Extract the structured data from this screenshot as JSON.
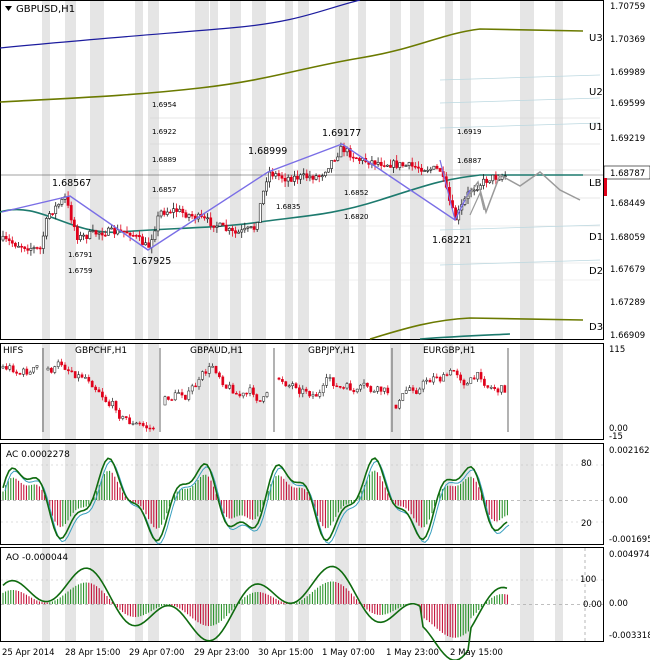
{
  "main_panel": {
    "title": "GBPUSD,H1",
    "price_axis": [
      "1.70759",
      "1.70369",
      "1.69989",
      "1.69599",
      "1.69219",
      "1.68787",
      "1.68449",
      "1.68059",
      "1.67679",
      "1.67289",
      "1.66909"
    ],
    "current_price": "1.68787",
    "levels": [
      {
        "label": "U3",
        "price": 1.7035
      },
      {
        "label": "U2",
        "price": 1.6962
      },
      {
        "label": "U1",
        "price": 1.6925
      },
      {
        "label": "LB",
        "price": 1.6879
      },
      {
        "label": "D1",
        "price": 1.6806
      },
      {
        "label": "D2",
        "price": 1.6768
      },
      {
        "label": "D3",
        "price": 1.67
      }
    ],
    "zigzag_labels": [
      {
        "text": "1.68567",
        "price": 1.68567
      },
      {
        "text": "1.67925",
        "price": 1.67925
      },
      {
        "text": "1.68999",
        "price": 1.68999
      },
      {
        "text": "1.69177",
        "price": 1.69177
      },
      {
        "text": "1.68221",
        "price": 1.68221
      }
    ],
    "fib_labels": [
      "1.6954",
      "1.6922",
      "1.6889",
      "1.6857",
      "1.6835",
      "1.6791",
      "1.6759",
      "1.6852",
      "1.6820",
      "1.6919",
      "1.6887"
    ]
  },
  "sub_panel_1": {
    "title": "HIFS",
    "instruments": [
      "GBPCHF,H1",
      "GBPAUD,H1",
      "GBPJPY,H1",
      "EURGBP,H1"
    ],
    "axis": [
      "115",
      "0.00",
      "-15"
    ]
  },
  "sub_panel_2": {
    "title": "AC 0.0002278",
    "axis_right": [
      "0.002162",
      "0.00",
      "-0.001695"
    ],
    "axis_left": [
      "80",
      "20"
    ]
  },
  "sub_panel_3": {
    "title": "AO -0.000044",
    "axis_right": [
      "0.004974",
      "0.00",
      "-0.003318"
    ],
    "axis_left": [
      "100",
      "0.00"
    ]
  },
  "time_axis": [
    "25 Apr 2014",
    "28 Apr 15:00",
    "29 Apr 07:00",
    "29 Apr 23:00",
    "30 Apr 15:00",
    "1 May 07:00",
    "1 May 23:00",
    "2 May 15:00"
  ],
  "colors": {
    "bull": "#1a1a1a",
    "bear": "#e0001a",
    "olive": "#6b7a00",
    "teal": "#1d7a6e",
    "navy": "#1c1c9e",
    "zigzag": "#7a6ee6",
    "ghost": "#9a9a9a",
    "ac_line": "#0f6b0f"
  }
}
